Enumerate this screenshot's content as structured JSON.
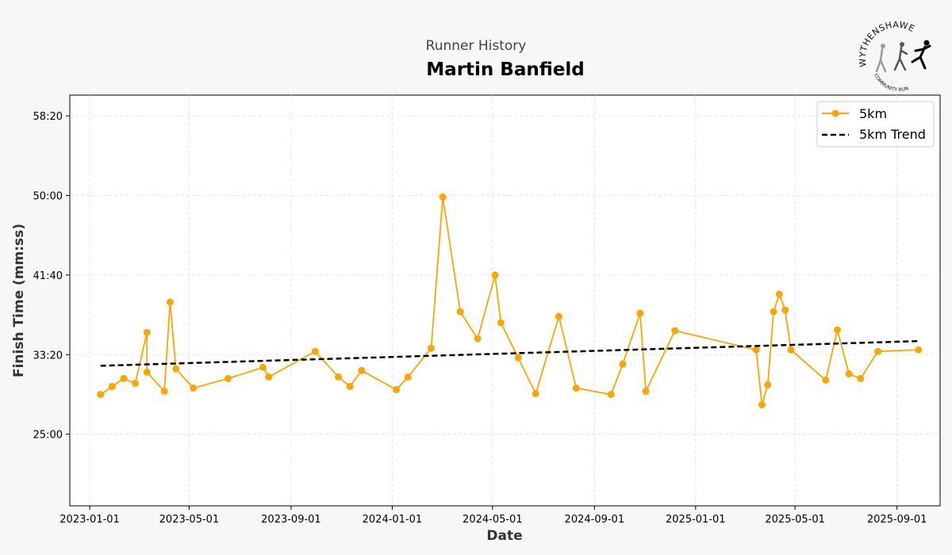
{
  "header": {
    "subtitle": "Runner History",
    "title": "Martin Banfield"
  },
  "logo": {
    "text_top": "WYTHENSHAWE",
    "text_bottom": "COMMUNITY RUN"
  },
  "colors": {
    "series": "#FFA500",
    "trend": "#000000",
    "background": "#f7f7f7",
    "plot_bg": "#ffffff",
    "grid": "#dddddd"
  },
  "chart_data": {
    "type": "line",
    "xlabel": "Date",
    "ylabel": "Finish Time (mm:ss)",
    "x_ticks": [
      "2023-01-01",
      "2023-05-01",
      "2023-09-01",
      "2024-01-01",
      "2024-05-01",
      "2024-09-01",
      "2025-01-01",
      "2025-05-01",
      "2025-09-01"
    ],
    "y_ticks": [
      "25:00",
      "33:20",
      "41:40",
      "50:00",
      "58:20"
    ],
    "y_tick_seconds": [
      1500,
      2000,
      2500,
      3000,
      3500
    ],
    "xlim": [
      "2022-12-08",
      "2025-10-23"
    ],
    "ylim_seconds": [
      1050,
      3630
    ],
    "grid": true,
    "legend_position": "top-right",
    "series": [
      {
        "name": "5km",
        "x": [
          "2023-01-14",
          "2023-01-28",
          "2023-02-11",
          "2023-02-25",
          "2023-03-11",
          "2023-03-11",
          "2023-04-01",
          "2023-04-08",
          "2023-04-15",
          "2023-05-06",
          "2023-06-17",
          "2023-07-29",
          "2023-08-05",
          "2023-09-30",
          "2023-10-28",
          "2023-11-11",
          "2023-11-25",
          "2024-01-06",
          "2024-01-20",
          "2024-02-17",
          "2024-03-02",
          "2024-03-23",
          "2024-04-13",
          "2024-05-04",
          "2024-05-11",
          "2024-06-01",
          "2024-06-22",
          "2024-07-20",
          "2024-08-10",
          "2024-09-21",
          "2024-10-05",
          "2024-10-26",
          "2024-11-02",
          "2024-12-07",
          "2025-03-15",
          "2025-03-22",
          "2025-03-29",
          "2025-04-05",
          "2025-04-12",
          "2025-04-19",
          "2025-04-26",
          "2025-06-07",
          "2025-06-21",
          "2025-07-05",
          "2025-07-19",
          "2025-08-09",
          "2025-09-27"
        ],
        "y": [
          "29:10",
          "30:00",
          "30:50",
          "30:20",
          "35:40",
          "31:30",
          "29:30",
          "38:50",
          "31:50",
          "29:50",
          "30:50",
          "32:00",
          "31:00",
          "33:40",
          "31:00",
          "30:00",
          "31:40",
          "29:40",
          "31:00",
          "34:00",
          "49:50",
          "37:50",
          "35:00",
          "41:40",
          "36:40",
          "33:00",
          "29:15",
          "37:20",
          "29:50",
          "29:10",
          "32:20",
          "37:40",
          "29:30",
          "35:50",
          "33:50",
          "28:05",
          "30:10",
          "37:50",
          "39:40",
          "38:00",
          "33:50",
          "30:40",
          "35:55",
          "31:20",
          "30:50",
          "33:40",
          "33:50"
        ]
      },
      {
        "name": "5km Trend",
        "x": [
          "2023-01-14",
          "2025-09-27"
        ],
        "y": [
          "32:10",
          "34:45"
        ]
      }
    ]
  }
}
